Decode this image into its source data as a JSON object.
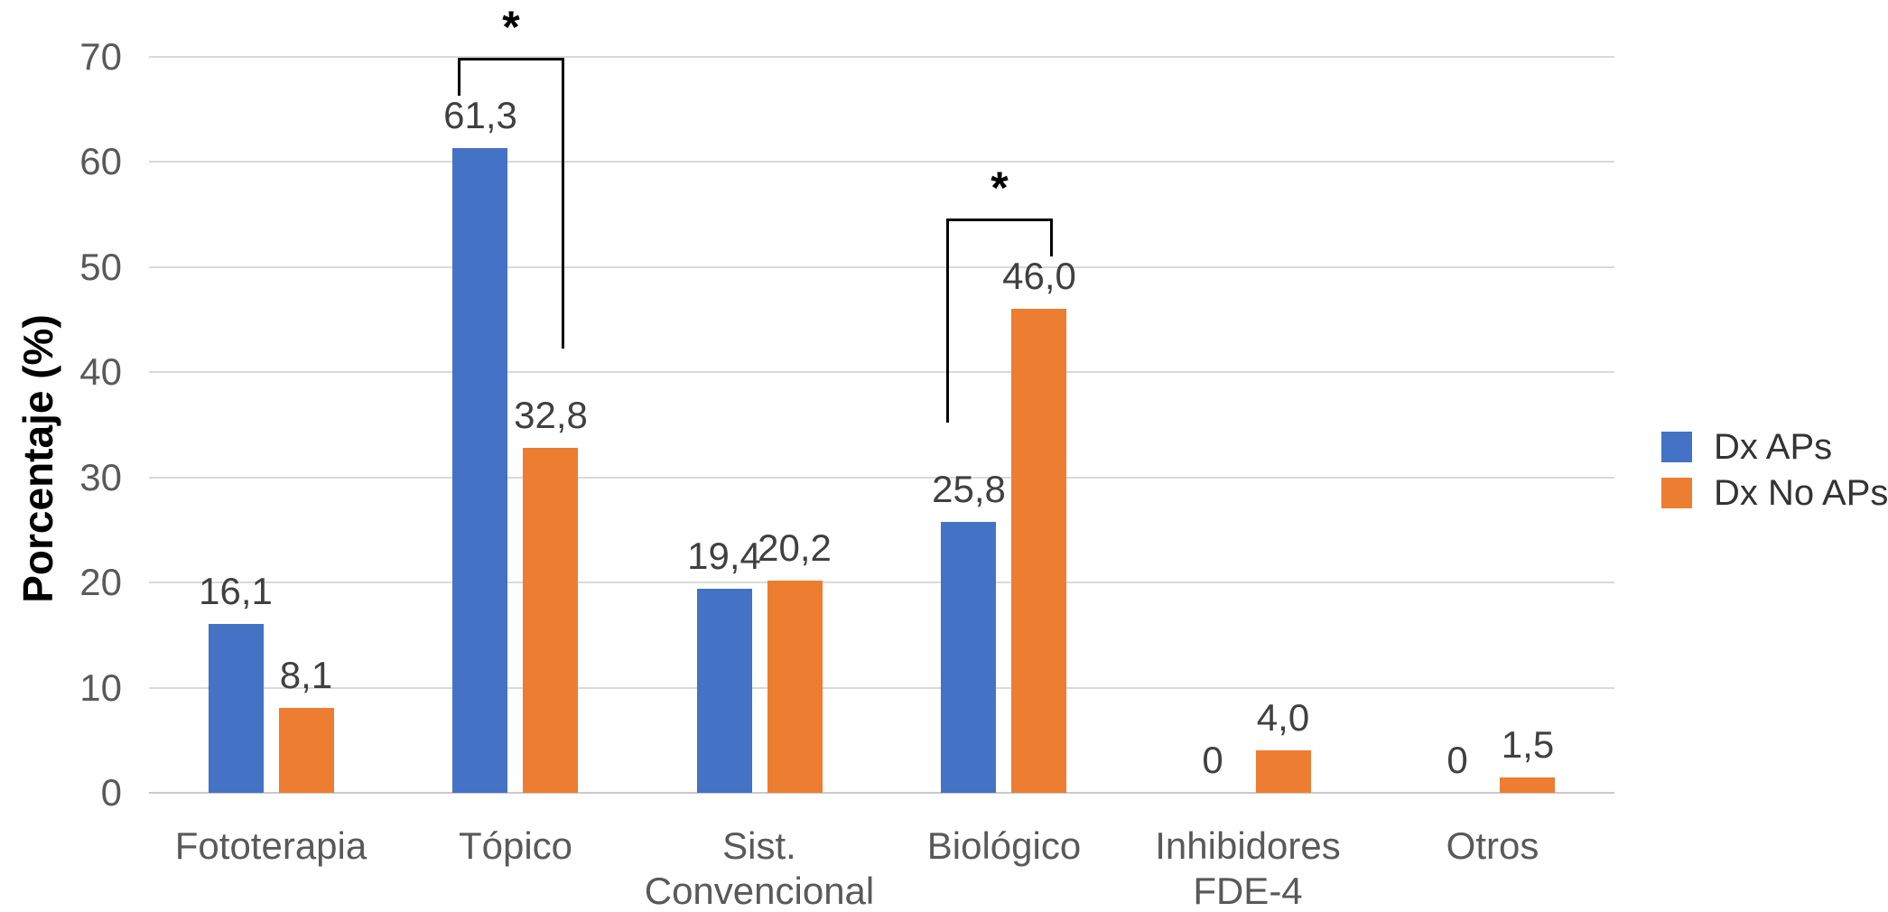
{
  "chart_data": {
    "type": "bar",
    "title": "",
    "xlabel": "",
    "ylabel": "Porcentaje (%)",
    "ylim": [
      0,
      70
    ],
    "yticks": [
      0,
      10,
      20,
      30,
      40,
      50,
      60,
      70
    ],
    "grid": true,
    "legend_position": "right",
    "categories": [
      "Fototerapia",
      "Tópico",
      "Sist. Convencional",
      "Biológico",
      "Inhibidores FDE-4",
      "Otros"
    ],
    "category_label_lines": [
      [
        "Fototerapia"
      ],
      [
        "Tópico"
      ],
      [
        "Sist.",
        "Convencional"
      ],
      [
        "Biológico"
      ],
      [
        "Inhibidores",
        "FDE-4"
      ],
      [
        "Otros"
      ]
    ],
    "series": [
      {
        "name": "Dx APs",
        "color": "#4472C4",
        "values": [
          16.1,
          61.3,
          19.4,
          25.8,
          0,
          0
        ],
        "value_labels": [
          "16,1",
          "61,3",
          "19,4",
          "25,8",
          "0",
          "0"
        ]
      },
      {
        "name": "Dx No APs",
        "color": "#ED7D31",
        "values": [
          8.1,
          32.8,
          20.2,
          46.0,
          4.0,
          1.5
        ],
        "value_labels": [
          "8,1",
          "32,8",
          "20,2",
          "46,0",
          "4,0",
          "1,5"
        ]
      }
    ],
    "significance_markers": [
      {
        "category_index": 1,
        "label": "*"
      },
      {
        "category_index": 3,
        "label": "*"
      }
    ],
    "colors": {
      "grid": "#D9D9D9",
      "axis_line": "#C9C9C9",
      "tick_label": "#595959",
      "value_label": "#404040",
      "category_label": "#595959",
      "annotation": "#000000",
      "background": "#FFFFFF"
    }
  }
}
